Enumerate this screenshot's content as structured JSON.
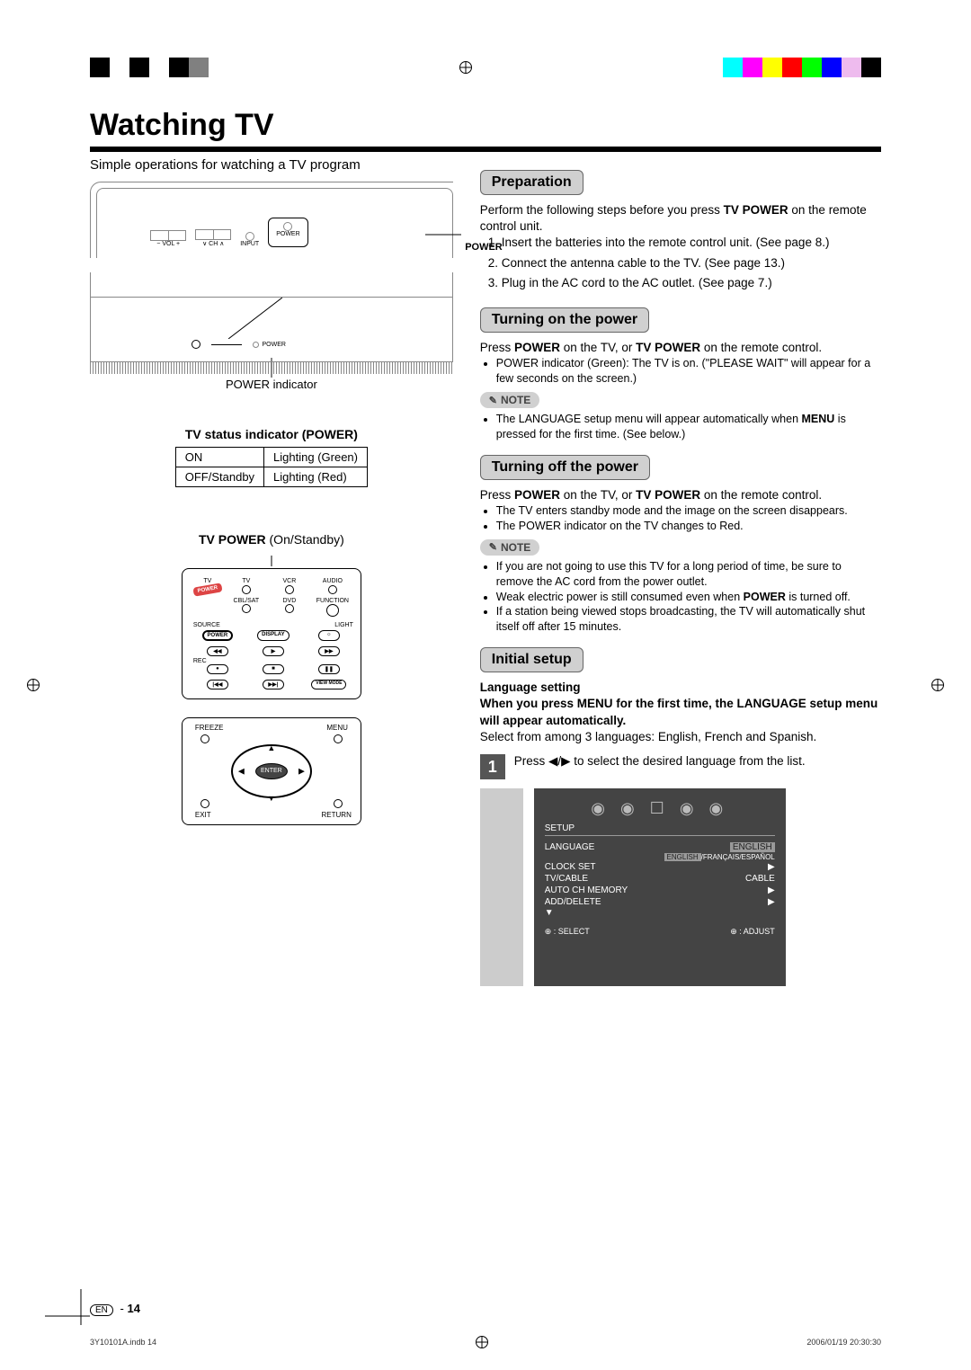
{
  "colorbar_left": [
    "#000000",
    "#ffffff",
    "#000000",
    "#ffffff",
    "#000000",
    "#808080",
    "#ffffff"
  ],
  "colorbar_right": [
    "#ffffff",
    "#00ffff",
    "#ff00ff",
    "#ffff00",
    "#ff0000",
    "#00ff00",
    "#0000ff",
    "#eebbee",
    "#000000"
  ],
  "page_title": "Watching TV",
  "intro": "Simple operations for watching a TV program",
  "top_panel": {
    "labels": [
      "− VOL +",
      "∨ CH ∧",
      "INPUT",
      "POWER"
    ],
    "power_label": "POWER"
  },
  "bottom_panel": {
    "power_label": "POWER",
    "indicator_text": "POWER indicator"
  },
  "status_table": {
    "title": "TV status indicator (POWER)",
    "rows": [
      [
        "ON",
        "Lighting (Green)"
      ],
      [
        "OFF/Standby",
        "Lighting (Red)"
      ]
    ]
  },
  "remote": {
    "title_prefix": "TV POWER",
    "title_suffix": " (On/Standby)",
    "top_labels": [
      "TV",
      "TV",
      "VCR",
      "AUDIO",
      "CBL/SAT",
      "DVD",
      "FUNCTION"
    ],
    "power_btn": "POWER",
    "row_labels": {
      "source": "SOURCE",
      "light": "LIGHT",
      "rec": "REC"
    },
    "btns": [
      "POWER",
      "DISPLAY",
      "☼",
      "◀◀",
      "▶",
      "▶▶",
      "●",
      "■",
      "❚❚",
      "|◀◀",
      "▶▶|",
      "VIEW MODE"
    ],
    "nav": {
      "freeze": "FREEZE",
      "menu": "MENU",
      "exit": "EXIT",
      "return": "RETURN",
      "enter": "ENTER"
    }
  },
  "preparation": {
    "heading": "Preparation",
    "intro_a": "Perform the following steps before you press ",
    "intro_b": "TV POWER",
    "intro_c": " on the remote control unit.",
    "steps": [
      "Insert the batteries into the remote control unit. (See page 8.)",
      "Connect the antenna cable to the TV. (See page 13.)",
      "Plug in the AC cord to the AC outlet. (See page 7.)"
    ]
  },
  "turn_on": {
    "heading": "Turning on the power",
    "line1_a": "Press ",
    "line1_b": "POWER",
    "line1_c": " on the TV, or ",
    "line1_d": "TV POWER",
    "line1_e": " on the remote control.",
    "bullets": [
      "POWER indicator (Green): The TV is on. (\"PLEASE WAIT\" will appear for a few seconds on the screen.)"
    ],
    "note": "The LANGUAGE setup menu will appear automatically when MENU is pressed for the first time. (See below.)"
  },
  "turn_off": {
    "heading": "Turning off the power",
    "line1_a": "Press ",
    "line1_b": "POWER",
    "line1_c": " on the TV, or ",
    "line1_d": "TV POWER",
    "line1_e": " on the remote control.",
    "bullets": [
      "The TV enters standby mode and the image on the screen disappears.",
      "The POWER indicator on the TV changes to Red."
    ],
    "note_bullets": [
      "If you are not going to use this TV for a long period of time, be sure to remove the AC cord from the power outlet.",
      "Weak electric power is still consumed even when POWER is turned off.",
      "If a station being viewed stops broadcasting, the TV will automatically shut itself off after 15 minutes."
    ]
  },
  "initial_setup": {
    "heading": "Initial setup",
    "sub1": "Language setting",
    "sub2": "When you press MENU for the first time, the LANGUAGE setup menu will appear automatically.",
    "desc": "Select from among 3 languages: English, French and Spanish.",
    "step1": "Press ◀/▶ to select the desired language from the list.",
    "osd": {
      "setup": "SETUP",
      "rows": [
        [
          "LANGUAGE",
          "ENGLISH"
        ],
        [
          "CLOCK SET",
          "▶"
        ],
        [
          "TV/CABLE",
          "CABLE"
        ],
        [
          "AUTO CH MEMORY",
          "▶"
        ],
        [
          "ADD/DELETE",
          "▶"
        ]
      ],
      "lang_opts": [
        "ENGLISH",
        "FRANÇAIS",
        "ESPAÑOL"
      ],
      "more": "▼",
      "bottom_left": "⊕ : SELECT",
      "bottom_right": "⊕ : ADJUST"
    }
  },
  "note_label": "NOTE",
  "footer": {
    "lang": "EN",
    "page": "14"
  },
  "print": {
    "file": "3Y10101A.indb   14",
    "timestamp": "2006/01/19   20:30:30"
  }
}
